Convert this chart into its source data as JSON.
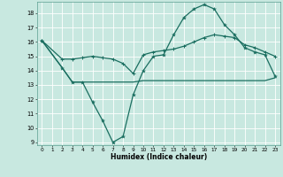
{
  "bg_color": "#c8e8e0",
  "grid_color": "#ffffff",
  "line_color": "#1a6e60",
  "xlabel": "Humidex (Indice chaleur)",
  "xlim": [
    -0.5,
    23.5
  ],
  "ylim": [
    8.8,
    18.8
  ],
  "yticks": [
    9,
    10,
    11,
    12,
    13,
    14,
    15,
    16,
    17,
    18
  ],
  "xticks": [
    0,
    1,
    2,
    3,
    4,
    5,
    6,
    7,
    8,
    9,
    10,
    11,
    12,
    13,
    14,
    15,
    16,
    17,
    18,
    19,
    20,
    21,
    22,
    23
  ],
  "line1_x": [
    0,
    2,
    3,
    4,
    5,
    6,
    7,
    8,
    9,
    10,
    11,
    12,
    13,
    14,
    15,
    16,
    17,
    18,
    19,
    20,
    21,
    22,
    23
  ],
  "line1_y": [
    16.1,
    14.2,
    13.2,
    13.2,
    11.8,
    10.5,
    9.0,
    9.4,
    12.3,
    14.0,
    15.0,
    15.1,
    16.5,
    17.7,
    18.3,
    18.6,
    18.3,
    17.2,
    16.5,
    15.6,
    15.3,
    15.1,
    13.6
  ],
  "line2_x": [
    0,
    2,
    3,
    4,
    5,
    6,
    7,
    8,
    9,
    10,
    11,
    12,
    13,
    14,
    15,
    16,
    17,
    18,
    19,
    20,
    21,
    22,
    23
  ],
  "line2_y": [
    16.1,
    14.8,
    14.8,
    14.9,
    15.0,
    14.9,
    14.8,
    14.5,
    13.8,
    15.1,
    15.3,
    15.4,
    15.5,
    15.7,
    16.0,
    16.3,
    16.5,
    16.4,
    16.3,
    15.8,
    15.6,
    15.3,
    15.0
  ],
  "line3_x": [
    0,
    2,
    3,
    4,
    5,
    6,
    7,
    8,
    9,
    10,
    11,
    12,
    13,
    14,
    15,
    16,
    17,
    18,
    19,
    20,
    21,
    22,
    23
  ],
  "line3_y": [
    16.1,
    14.2,
    13.2,
    13.2,
    13.2,
    13.2,
    13.2,
    13.2,
    13.2,
    13.3,
    13.3,
    13.3,
    13.3,
    13.3,
    13.3,
    13.3,
    13.3,
    13.3,
    13.3,
    13.3,
    13.3,
    13.3,
    13.5
  ]
}
